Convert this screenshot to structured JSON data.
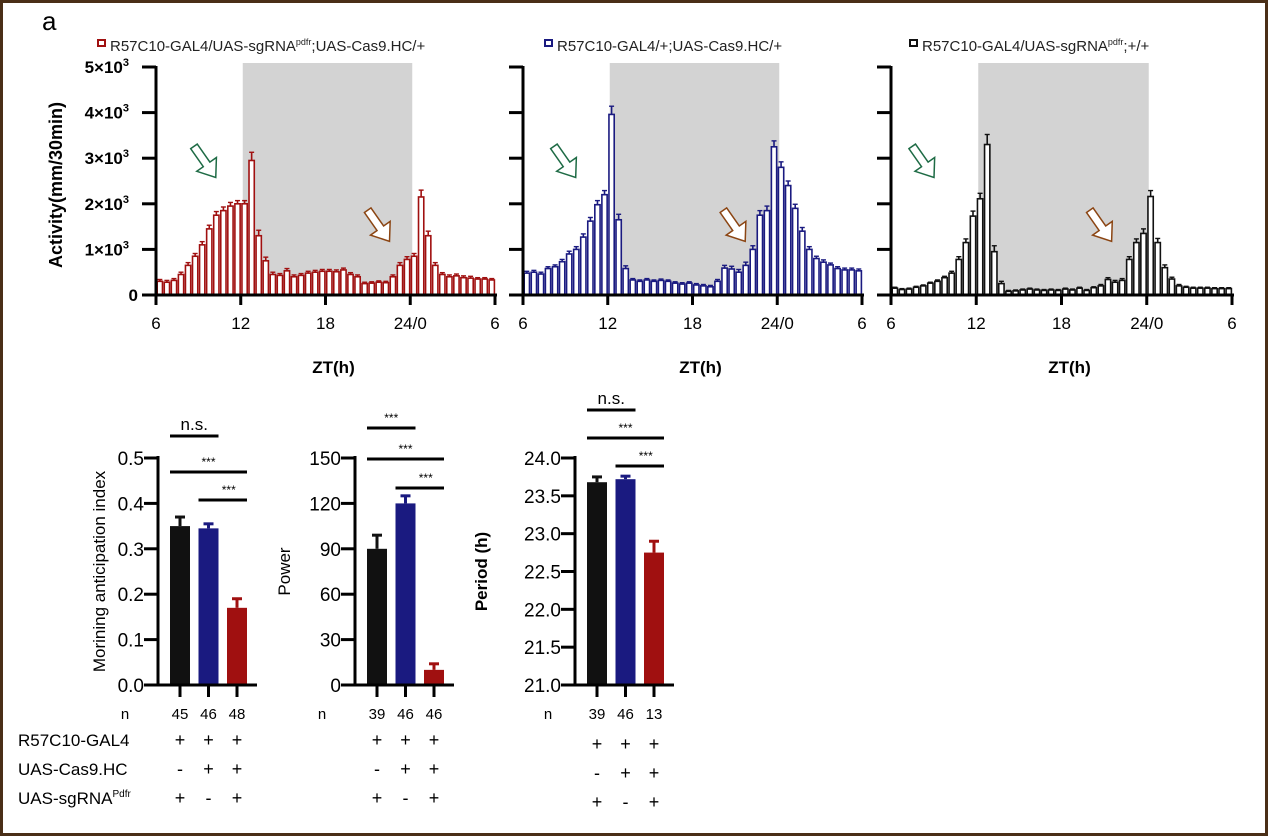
{
  "panel_label": "a",
  "chart_data": [
    {
      "type": "bar",
      "id": "activity-red",
      "title": "R57C10-GAL4/UAS-sgRNA^pdfr;UAS-Cas9.HC/+",
      "legend_main": "R57C10-GAL4/UAS-sgRNA",
      "legend_sup": "pdfr",
      "legend_tail": ";UAS-Cas9.HC/+",
      "color": "#a01010",
      "xlabel": "ZT(h)",
      "ylabel": "Activity(mm/30min)",
      "ylim": [
        0,
        5000
      ],
      "yticks": [
        0,
        1000,
        2000,
        3000,
        4000,
        5000
      ],
      "ytick_labels": [
        "0",
        "1×10",
        "2×10",
        "3×10",
        "4×10",
        "5×10"
      ],
      "ytick_exp": "3",
      "xticks": [
        "6",
        "12",
        "18",
        "24/0",
        "6"
      ],
      "dark_phase_zt": [
        12,
        24
      ],
      "bin_hours": 0.5,
      "values": [
        300,
        280,
        320,
        450,
        650,
        850,
        1100,
        1450,
        1750,
        1850,
        1950,
        2000,
        2000,
        2950,
        1300,
        750,
        450,
        430,
        530,
        400,
        430,
        480,
        500,
        520,
        520,
        510,
        550,
        450,
        400,
        250,
        260,
        280,
        270,
        400,
        650,
        780,
        850,
        2150,
        1300,
        650,
        450,
        400,
        420,
        380,
        370,
        350,
        350,
        330
      ],
      "errors": [
        40,
        40,
        40,
        50,
        60,
        60,
        70,
        80,
        80,
        80,
        80,
        70,
        70,
        180,
        120,
        80,
        50,
        40,
        50,
        40,
        40,
        40,
        40,
        40,
        40,
        40,
        40,
        40,
        40,
        30,
        30,
        30,
        30,
        40,
        60,
        60,
        60,
        150,
        100,
        60,
        40,
        40,
        40,
        40,
        40,
        30,
        30,
        30
      ],
      "annotations": [
        {
          "type": "arrow",
          "color": "#1e6b45",
          "at_zt": 9.5
        },
        {
          "type": "arrow",
          "color": "#8b4513",
          "at_zt": 21.8
        }
      ]
    },
    {
      "type": "bar",
      "id": "activity-blue",
      "title": "R57C10-GAL4/+;UAS-Cas9.HC/+",
      "legend_main": "R57C10-GAL4/+;UAS-Cas9.HC/+",
      "legend_sup": "",
      "legend_tail": "",
      "color": "#1a1a80",
      "xlabel": "ZT(h)",
      "ylim": [
        0,
        5000
      ],
      "xticks": [
        "6",
        "12",
        "18",
        "24/0",
        "6"
      ],
      "dark_phase_zt": [
        12,
        24
      ],
      "bin_hours": 0.5,
      "values": [
        480,
        500,
        460,
        580,
        620,
        730,
        900,
        1000,
        1270,
        1620,
        1980,
        2200,
        3960,
        1650,
        580,
        330,
        300,
        330,
        300,
        320,
        300,
        260,
        240,
        260,
        220,
        200,
        180,
        300,
        590,
        570,
        500,
        650,
        1000,
        1750,
        1850,
        3250,
        2800,
        2400,
        1900,
        1400,
        1000,
        800,
        720,
        660,
        580,
        550,
        550,
        530
      ],
      "errors": [
        40,
        40,
        40,
        40,
        40,
        50,
        60,
        60,
        70,
        80,
        90,
        90,
        180,
        120,
        60,
        30,
        30,
        30,
        30,
        30,
        30,
        30,
        30,
        30,
        30,
        30,
        30,
        40,
        60,
        60,
        60,
        70,
        80,
        100,
        100,
        130,
        120,
        100,
        90,
        80,
        60,
        50,
        50,
        40,
        40,
        40,
        40,
        40
      ],
      "annotations": [
        {
          "type": "arrow",
          "color": "#1e6b45",
          "at_zt": 9.0
        },
        {
          "type": "arrow",
          "color": "#8b4513",
          "at_zt": 21.0
        }
      ]
    },
    {
      "type": "bar",
      "id": "activity-black",
      "title": "R57C10-GAL4/UAS-sgRNA^pdfr;+/+",
      "legend_main": "R57C10-GAL4/UAS-sgRNA",
      "legend_sup": "pdfr",
      "legend_tail": ";+/+",
      "color": "#111111",
      "xlabel": "ZT(h)",
      "ylim": [
        0,
        5000
      ],
      "xticks": [
        "6",
        "12",
        "18",
        "24/0",
        "6"
      ],
      "dark_phase_zt": [
        12,
        24
      ],
      "bin_hours": 0.5,
      "values": [
        150,
        120,
        130,
        170,
        200,
        260,
        300,
        380,
        480,
        780,
        1150,
        1730,
        2110,
        3300,
        950,
        250,
        80,
        90,
        110,
        130,
        110,
        100,
        110,
        100,
        130,
        110,
        150,
        100,
        160,
        200,
        340,
        280,
        320,
        780,
        1150,
        1350,
        2160,
        1150,
        600,
        350,
        200,
        170,
        150,
        150,
        150,
        140,
        140,
        140
      ],
      "errors": [
        20,
        20,
        20,
        20,
        20,
        20,
        30,
        30,
        40,
        60,
        80,
        110,
        120,
        220,
        130,
        50,
        20,
        20,
        20,
        20,
        20,
        20,
        20,
        20,
        20,
        20,
        20,
        20,
        20,
        30,
        40,
        40,
        40,
        60,
        80,
        100,
        130,
        90,
        60,
        40,
        30,
        20,
        20,
        20,
        20,
        20,
        20,
        20
      ],
      "annotations": [
        {
          "type": "arrow",
          "color": "#1e6b45",
          "at_zt": 8.3
        },
        {
          "type": "arrow",
          "color": "#8b4513",
          "at_zt": 20.8
        }
      ]
    },
    {
      "type": "bar",
      "id": "morning-anticipation",
      "ylabel": "Morining anticipation index",
      "ylim": [
        0,
        0.5
      ],
      "yticks": [
        "0.0",
        "0.1",
        "0.2",
        "0.3",
        "0.4",
        "0.5"
      ],
      "categories": [
        "control-gal4-sgrna",
        "control-gal4-cas9",
        "knockout"
      ],
      "values": [
        0.35,
        0.345,
        0.17
      ],
      "errors": [
        0.02,
        0.01,
        0.02
      ],
      "colors": [
        "#111111",
        "#1a1a80",
        "#a01010"
      ],
      "n": [
        "45",
        "46",
        "48"
      ],
      "significance": [
        {
          "from": 0,
          "to": 1,
          "label": "n.s."
        },
        {
          "from": 0,
          "to": 2,
          "label": "***"
        },
        {
          "from": 1,
          "to": 2,
          "label": "***"
        }
      ]
    },
    {
      "type": "bar",
      "id": "power",
      "ylabel": "Power",
      "ylim": [
        0,
        150
      ],
      "yticks": [
        "0",
        "30",
        "60",
        "90",
        "120",
        "150"
      ],
      "categories": [
        "control-gal4-sgrna",
        "control-gal4-cas9",
        "knockout"
      ],
      "values": [
        90,
        120,
        10
      ],
      "errors": [
        9,
        5,
        4
      ],
      "colors": [
        "#111111",
        "#1a1a80",
        "#a01010"
      ],
      "n": [
        "39",
        "46",
        "46"
      ],
      "significance": [
        {
          "from": 0,
          "to": 1,
          "label": "***"
        },
        {
          "from": 0,
          "to": 2,
          "label": "***"
        },
        {
          "from": 1,
          "to": 2,
          "label": "***"
        }
      ]
    },
    {
      "type": "bar",
      "id": "period",
      "ylabel": "Period (h)",
      "ylim": [
        21.0,
        24.0
      ],
      "yticks": [
        "21.0",
        "21.5",
        "22.0",
        "22.5",
        "23.0",
        "23.5",
        "24.0"
      ],
      "categories": [
        "control-gal4-sgrna",
        "control-gal4-cas9",
        "knockout"
      ],
      "values": [
        23.68,
        23.72,
        22.75
      ],
      "errors": [
        0.07,
        0.04,
        0.15
      ],
      "colors": [
        "#111111",
        "#1a1a80",
        "#a01010"
      ],
      "n": [
        "39",
        "46",
        "13"
      ],
      "significance": [
        {
          "from": 0,
          "to": 1,
          "label": "n.s."
        },
        {
          "from": 0,
          "to": 2,
          "label": "***"
        },
        {
          "from": 1,
          "to": 2,
          "label": "***"
        }
      ]
    }
  ],
  "genotype_table": {
    "n_label": "n",
    "rows": [
      {
        "label": "R57C10-GAL4",
        "sup": "",
        "marks": [
          "+",
          "+",
          "+"
        ]
      },
      {
        "label": "UAS-Cas9.HC",
        "sup": "",
        "marks": [
          "-",
          "+",
          "+"
        ]
      },
      {
        "label": "UAS-sgRNA",
        "sup": "Pdfr",
        "marks": [
          "+",
          "-",
          "+"
        ]
      }
    ]
  }
}
